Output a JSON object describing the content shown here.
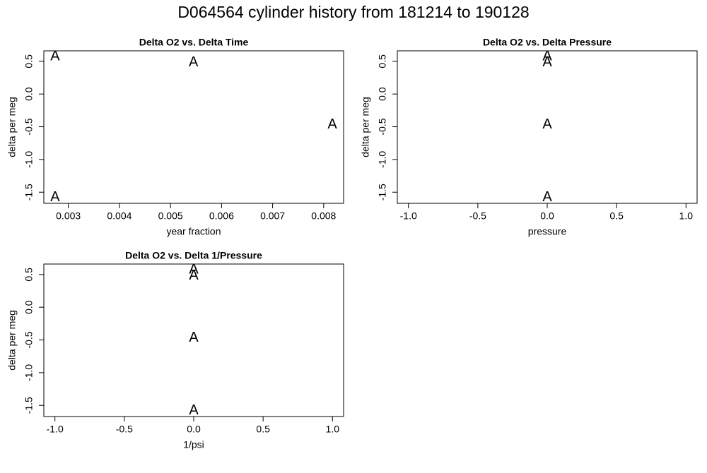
{
  "title": "D064564   cylinder history from  181214  to  190128",
  "chart_data": [
    {
      "type": "scatter",
      "title": "Delta O2 vs. Delta Time",
      "x_label": "year fraction",
      "y_label": "delta per meg",
      "marker": "A",
      "color": "#006400",
      "x": [
        0.00274,
        0.00545,
        0.00817,
        0.00274
      ],
      "values": [
        0.57,
        0.48,
        -0.47,
        -1.58
      ],
      "xlim": [
        0.00252,
        0.00839
      ],
      "xticks": [
        0.003,
        0.004,
        0.005,
        0.006,
        0.007,
        0.008
      ],
      "ylim": [
        -1.67,
        0.66
      ],
      "yticks": [
        -1.5,
        {
          "value": -1,
          "label": "-1.0"
        },
        -0.5,
        {
          "value": 0,
          "label": "0.0"
        },
        0.5
      ]
    },
    {
      "type": "scatter",
      "title": "Delta O2 vs. Delta Pressure",
      "x_label": "pressure",
      "y_label": "delta per meg",
      "marker": "A",
      "color": "#006400",
      "x": [
        0,
        0,
        0,
        0
      ],
      "values": [
        0.57,
        0.48,
        -0.47,
        -1.58
      ],
      "xlim": [
        -1.08,
        1.08
      ],
      "xticks": [
        {
          "value": -1,
          "label": "-1.0"
        },
        -0.5,
        {
          "value": 0,
          "label": "0.0"
        },
        0.5,
        {
          "value": 1,
          "label": "1.0"
        }
      ],
      "ylim": [
        -1.67,
        0.66
      ],
      "yticks": [
        -1.5,
        {
          "value": -1,
          "label": "-1.0"
        },
        -0.5,
        {
          "value": 0,
          "label": "0.0"
        },
        0.5
      ]
    },
    {
      "type": "scatter",
      "title": "Delta O2 vs. Delta 1/Pressure",
      "x_label": "1/psi",
      "y_label": "delta per meg",
      "marker": "A",
      "color": "#006400",
      "x": [
        0,
        0,
        0,
        0
      ],
      "values": [
        0.57,
        0.48,
        -0.47,
        -1.58
      ],
      "xlim": [
        -1.08,
        1.08
      ],
      "xticks": [
        {
          "value": -1,
          "label": "-1.0"
        },
        -0.5,
        {
          "value": 0,
          "label": "0.0"
        },
        0.5,
        {
          "value": 1,
          "label": "1.0"
        }
      ],
      "ylim": [
        -1.67,
        0.66
      ],
      "yticks": [
        -1.5,
        {
          "value": -1,
          "label": "-1.0"
        },
        -0.5,
        {
          "value": 0,
          "label": "0.0"
        },
        0.5
      ]
    }
  ]
}
